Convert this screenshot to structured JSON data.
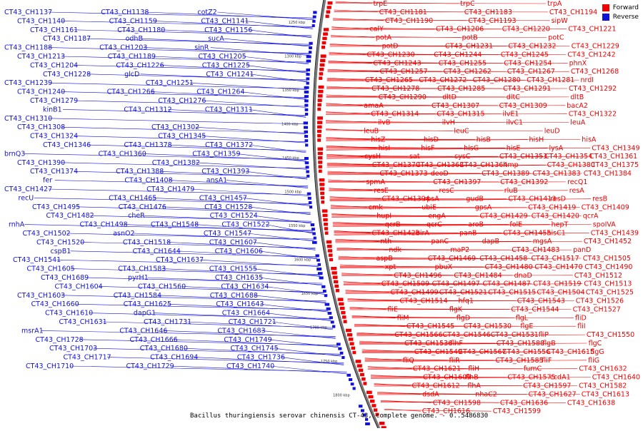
{
  "caption": "Bacillus thuringiensis serovar chinensis CT-43, complete genome. - 0..5486830",
  "legend": [
    {
      "label": "Forward",
      "color": "#ee0000"
    },
    {
      "label": "Reverse",
      "color": "#1111dd"
    }
  ],
  "colors": {
    "forward": "#ee0000",
    "reverse": "#1111dd",
    "backbone": "#777777"
  },
  "ticks": [
    "1250 kbp",
    "1300 kbp",
    "1350 kbp",
    "1400 kbp",
    "1450 kbp",
    "1500 kbp",
    "1550 kbp",
    "1600 kbp",
    "1650 kbp",
    "1700 kbp",
    "1750 kbp",
    "1800 kbp"
  ],
  "left_labels": [
    "CT43_CH1137",
    "CT43_CH1138",
    "cotZ2",
    "CT43_CH1140",
    "CT43_CH1159",
    "CT43_CH1141",
    "CT43_CH1161",
    "CT43_CH1180",
    "CT43_CH1156",
    "CT43_CH1187",
    "odhB",
    "sucA",
    "CT43_CH1188",
    "CT43_CH1203",
    "sinR",
    "CT43_CH1213",
    "CT43_CH1189",
    "CT43_CH1205",
    "CT43_CH1204",
    "CT43_CH1226",
    "CT43_CH1225",
    "CT43_CH1228",
    "glcD",
    "CT43_CH1241",
    "CT43_CH1239",
    "CT43_CH1251",
    "CT43_CH1240",
    "CT43_CH1266",
    "CT43_CH1264",
    "CT43_CH1279",
    "CT43_CH1276",
    "kinB1",
    "CT43_CH1312",
    "CT43_CH1311",
    "CT43_CH1310",
    "CT43_CH1308",
    "CT43_CH1302",
    "CT43_CH1324",
    "CT43_CH1345",
    "CT43_CH1346",
    "CT43_CH1378",
    "CT43_CH1372",
    "brnQ3",
    "CT43_CH1360",
    "CT43_CH1359",
    "CT43_CH1390",
    "CT43_CH1382",
    "CT43_CH1374",
    "CT43_CH1388",
    "CT43_CH1393",
    "fer",
    "CT43_CH1408",
    "ansA1",
    "CT43_CH1427",
    "CT43_CH1479",
    "recU",
    "CT43_CH1465",
    "CT43_CH1457",
    "CT43_CH1495",
    "CT43_CH1476",
    "CT43_CH1528",
    "CT43_CH1482",
    "cheR",
    "CT43_CH1524",
    "rnhA",
    "CT43_CH1498",
    "CT43_CH1548",
    "CT43_CH1522",
    "CT43_CH1502",
    "asnO2",
    "CT43_CH1547",
    "CT43_CH1520",
    "CT43_CH1518",
    "CT43_CH1607",
    "cspB1",
    "CT43_CH1644",
    "CT43_CH1606",
    "CT43_CH1541",
    "CT43_CH1637",
    "CT43_CH1605",
    "CT43_CH1583",
    "CT43_CH1555",
    "CT43_CH1689",
    "pyrH1",
    "CT43_CH1635",
    "CT43_CH1604",
    "CT43_CH1560",
    "CT43_CH1634",
    "CT43_CH1603",
    "CT43_CH1584",
    "CT43_CH1688",
    "CT43_CH1660",
    "CT43_CH1625",
    "CT43_CH1643",
    "CT43_CH1610",
    "dapG1",
    "CT43_CH1664",
    "CT43_CH1631",
    "CT43_CH1731",
    "CT43_CH1721",
    "msrA1",
    "CT43_CH1646",
    "CT43_CH1683",
    "CT43_CH1728",
    "CT43_CH1666",
    "CT43_CH1749",
    "CT43_CH1703",
    "CT43_CH1680",
    "CT43_CH1745",
    "CT43_CH1717",
    "CT43_CH1694",
    "CT43_CH1736",
    "CT43_CH1710",
    "CT43_CH1729",
    "CT43_CH1740"
  ],
  "right_labels": [
    "trpE",
    "trpC",
    "trpA",
    "CT43_CH1181",
    "CT43_CH1183",
    "CT43_CH1194",
    "CT43_CH1190",
    "CT43_CH1193",
    "sipW",
    "calY",
    "CT43_CH1206",
    "CT43_CH1220",
    "CT43_CH1221",
    "potA",
    "potB",
    "potC",
    "potD",
    "CT43_CH1231",
    "CT43_CH1232",
    "CT43_CH1229",
    "CT43_CH1230",
    "CT43_CH1244",
    "CT43_CH1245",
    "CT43_CH1242",
    "CT43_CH1243",
    "CT43_CH1255",
    "CT43_CH1254",
    "phnX",
    "CT43_CH1257",
    "CT43_CH1262",
    "CT43_CH1267",
    "CT43_CH1268",
    "CT43_CH1265",
    "CT43_CH1272",
    "CT43_CH1280",
    "CT43_CH1281",
    "nrdI",
    "CT43_CH1278",
    "CT43_CH1285",
    "CT43_CH1291",
    "CT43_CH1292",
    "CT43_CH1290",
    "dltD",
    "dltC",
    "dltB",
    "amaA",
    "CT43_CH1307",
    "CT43_CH1309",
    "bacA2",
    "CT43_CH1314",
    "CT43_CH1315",
    "ilvE1",
    "CT43_CH1322",
    "ilvB",
    "ilvH",
    "ilvC1",
    "leuA",
    "leuB",
    "leuC",
    "leuD",
    "hisZ",
    "hisD",
    "hisB",
    "hisH",
    "hisA",
    "hisI",
    "hisF",
    "hisG",
    "hisE",
    "lysA",
    "CT43_CH1349",
    "cysH",
    "sat",
    "cysC",
    "CT43_CH1353",
    "CT43_CH1354",
    "CT43_CH1361",
    "CT43_CH1370",
    "CT43_CH1363",
    "CT43_CH1364",
    "hmp",
    "CT43_CH1380",
    "CT43_CH1375",
    "CT43_CH1373",
    "deoD",
    "CT43_CH1389",
    "CT43_CH1383",
    "CT43_CH1384",
    "spmA",
    "CT43_CH1397",
    "CT43_CH1392",
    "recQ1",
    "resE",
    "resC",
    "rluB",
    "resA",
    "CT43_CH1394",
    "rpsA",
    "gudB",
    "CT43_CH1413",
    "resD",
    "resB",
    "cmk",
    "ubiE",
    "gpsA",
    "CT43_CH1419",
    "CT43_CH1409",
    "hupI",
    "engA",
    "CT43_CH1429",
    "CT43_CH1420",
    "qcrA",
    "qcrB",
    "qcrC",
    "aroB",
    "folE",
    "hepT",
    "spoIVA",
    "CT43_CH1428",
    "birA",
    "panB",
    "CT43_CH1455",
    "hisC1",
    "CT43_CH1439",
    "nth",
    "panC",
    "dapB",
    "mgsA",
    "CT43_CH1452",
    "ndk",
    "maP2",
    "CT43_CH1483",
    "panD",
    "aspB",
    "CT43_CH1469",
    "CT43_CH1458",
    "CT43_CH1517",
    "CT43_CH1505",
    "xpt",
    "pbuX",
    "CT43_CH1480",
    "CT43_CH1470",
    "CT43_CH1490",
    "CT43_CH1496",
    "CT43_CH1484",
    "dnaD",
    "CT43_CH1512",
    "CT43_CH1509",
    "CT43_CH1497",
    "CT43_CH1487",
    "CT43_CH1519",
    "CT43_CH1513",
    "CT43_CH1499",
    "CT43_CH1521",
    "CT43_CH1515",
    "CT43_CH1504",
    "CT43_CH1525",
    "CT43_CH1514",
    "hfq1",
    "CT43_CH1543",
    "CT43_CH1526",
    "fliE",
    "flgK",
    "CT43_CH1544",
    "CT43_CH1527",
    "fliM",
    "flgD",
    "flgL",
    "fliD",
    "CT43_CH1545",
    "CT43_CH1530",
    "flgE",
    "fliI",
    "CT43_CH1566",
    "CT43_CH1546",
    "CT43_CH1531",
    "fliP",
    "CT43_CH1550",
    "CT43_CH1536",
    "flhF",
    "CT43_CH1588",
    "flgB",
    "flgC",
    "CT43_CH1549",
    "CT43_CH1567",
    "CT43_CH1556",
    "CT43_CH1615",
    "flgG",
    "fliQ",
    "fliR",
    "CT43_CH1585",
    "fliF",
    "fliG",
    "CT43_CH1621",
    "fliH",
    "fumC",
    "CT43_CH1632",
    "CT43_CH1609",
    "flhB",
    "CT43_CH1575",
    "ccdA1",
    "CT43_CH1640",
    "CT43_CH1612",
    "flhA",
    "CT43_CH1597",
    "CT43_CH1582",
    "dsdA",
    "nhaC2",
    "CT43_CH1627",
    "CT43_CH1613",
    "CT43_CH1598",
    "CT43_CH1636",
    "CT43_CH1638",
    "CT43_CH1616",
    "CT43_CH1599"
  ]
}
